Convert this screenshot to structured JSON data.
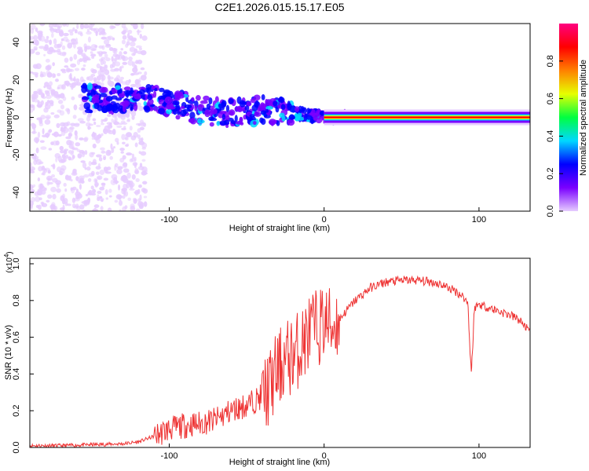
{
  "title": "C2E1.2026.015.15.17.E05",
  "chart_data": [
    {
      "type": "heatmap",
      "title": "C2E1.2026.015.15.17.E05",
      "xlabel": "Height of straight line (km)",
      "ylabel": "Frequency (Hz)",
      "xlim": [
        -190,
        133
      ],
      "ylim": [
        -50,
        50
      ],
      "xticks": [
        -100,
        0,
        100
      ],
      "xtick_labels": [
        "-100",
        "0",
        "100"
      ],
      "yticks": [
        -40,
        -20,
        0,
        20,
        40
      ],
      "ytick_labels": [
        "-40",
        "-20",
        "0",
        "20",
        "40"
      ],
      "grid": false,
      "colorbar": {
        "label": "Normalized spectral amplitude",
        "range": [
          0,
          1
        ],
        "ticks": [
          0.0,
          0.2,
          0.4,
          0.6,
          0.8
        ],
        "tick_labels": [
          "0.0",
          "0.2",
          "0.4",
          "0.6",
          "0.8"
        ],
        "colormap": [
          "#e6ccff",
          "#7a00ff",
          "#0000ff",
          "#00d8ff",
          "#00ff40",
          "#e6ff00",
          "#ff8000",
          "#ff0000",
          "#ff0080"
        ]
      },
      "ridge": {
        "x": [
          -150,
          -120,
          -100,
          -80,
          -60,
          -40,
          -20,
          -10,
          0,
          20,
          60,
          88,
          92,
          100,
          133
        ],
        "y": [
          10,
          10,
          8,
          4,
          2,
          4,
          2,
          1,
          0,
          0,
          0,
          0,
          0,
          0,
          0
        ]
      }
    },
    {
      "type": "line",
      "xlabel": "Height of straight line (km)",
      "ylabel": "SNR (10 * v/v)",
      "y_multiplier": "(x10",
      "y_multiplier_exp": "4",
      "y_multiplier_close": ")",
      "xlim": [
        -190,
        133
      ],
      "ylim": [
        0,
        1.03
      ],
      "xticks": [
        -100,
        0,
        100
      ],
      "xtick_labels": [
        "-100",
        "0",
        "100"
      ],
      "yticks": [
        0.0,
        0.2,
        0.4,
        0.6,
        0.8,
        1.0
      ],
      "ytick_labels": [
        "0.0",
        "0.2",
        "0.4",
        "0.6",
        "0.8",
        "1.0"
      ],
      "grid": false,
      "series": [
        {
          "name": "SNR",
          "color": "#ee3333",
          "x": [
            -190,
            -170,
            -150,
            -130,
            -120,
            -110,
            -100,
            -90,
            -80,
            -70,
            -60,
            -50,
            -40,
            -35,
            -30,
            -25,
            -20,
            -15,
            -10,
            -5,
            0,
            5,
            10,
            20,
            30,
            40,
            50,
            60,
            70,
            75,
            80,
            85,
            90,
            93,
            94,
            95,
            96,
            97,
            100,
            110,
            120,
            125,
            130,
            133
          ],
          "y": [
            0.01,
            0.01,
            0.015,
            0.02,
            0.03,
            0.06,
            0.1,
            0.12,
            0.13,
            0.15,
            0.2,
            0.23,
            0.28,
            0.33,
            0.42,
            0.48,
            0.5,
            0.55,
            0.62,
            0.65,
            0.68,
            0.66,
            0.7,
            0.8,
            0.87,
            0.9,
            0.91,
            0.91,
            0.9,
            0.89,
            0.87,
            0.85,
            0.82,
            0.78,
            0.55,
            0.42,
            0.55,
            0.76,
            0.78,
            0.75,
            0.72,
            0.7,
            0.66,
            0.62
          ]
        }
      ]
    }
  ]
}
